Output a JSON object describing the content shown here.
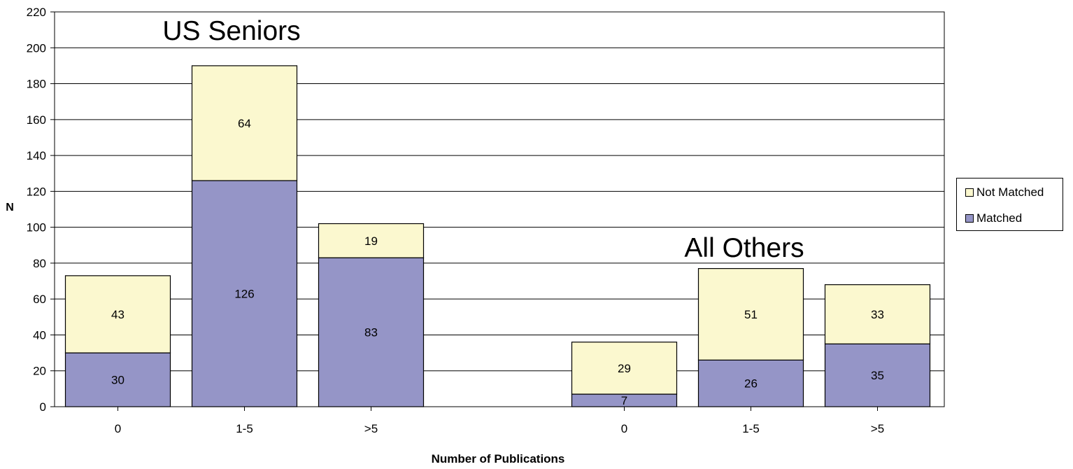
{
  "chart_data": {
    "type": "bar",
    "stacked": true,
    "ylabel": "N",
    "xlabel": "Number of Publications",
    "ylim": [
      0,
      220
    ],
    "yticks": [
      0,
      20,
      40,
      60,
      80,
      100,
      120,
      140,
      160,
      180,
      200,
      220
    ],
    "grid": true,
    "legend_position": "right",
    "groups": [
      {
        "label": "US Seniors",
        "categories": [
          "0",
          "1-5",
          ">5"
        ]
      },
      {
        "label": "All Others",
        "categories": [
          "0",
          "1-5",
          ">5"
        ]
      }
    ],
    "series": [
      {
        "name": "Matched",
        "color": "#9595c7",
        "values": [
          30,
          126,
          83,
          7,
          26,
          35
        ]
      },
      {
        "name": "Not Matched",
        "color": "#fbf8cf",
        "values": [
          43,
          64,
          19,
          29,
          51,
          33
        ]
      }
    ]
  }
}
